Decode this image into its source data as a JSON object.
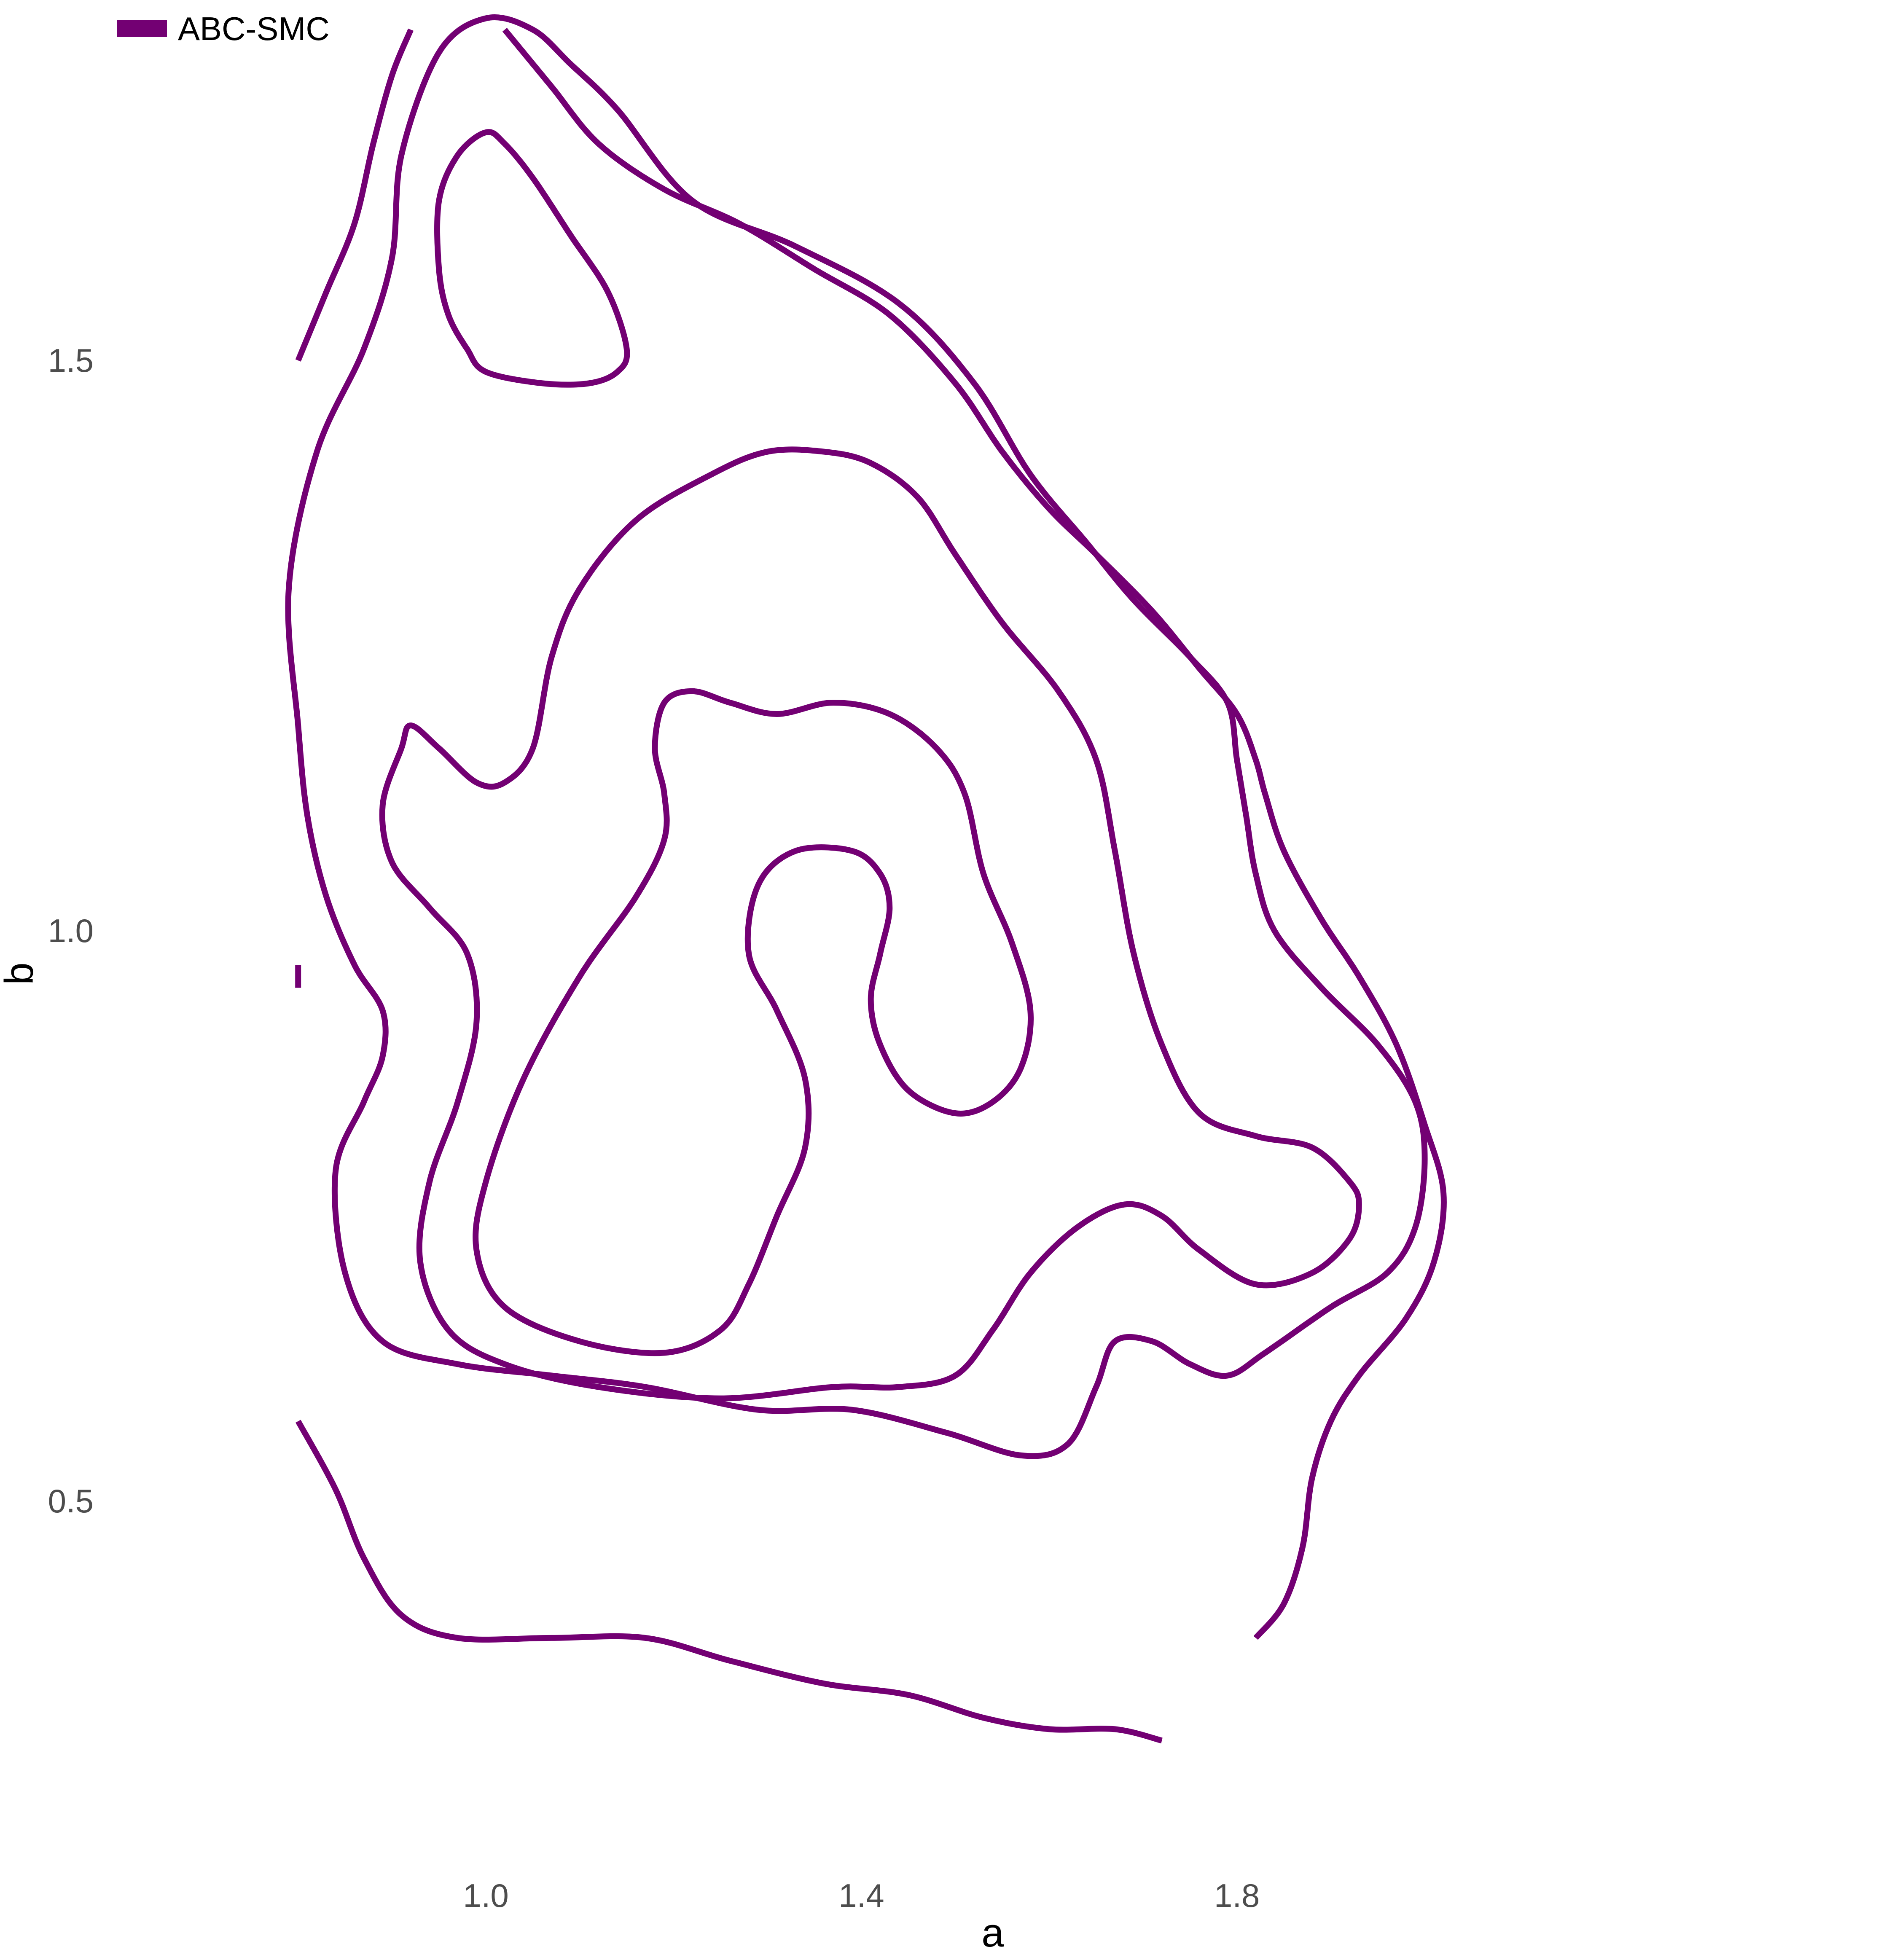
{
  "chart_data": {
    "type": "contour",
    "xlabel": "a",
    "ylabel": "b",
    "xlim": [
      0.68,
      2.12
    ],
    "ylim": [
      0.36,
      1.84
    ],
    "x_ticks": [
      1.0,
      1.4,
      1.8
    ],
    "x_tick_labels": [
      "1.0",
      "1.4",
      "1.8"
    ],
    "y_ticks": [
      0.5,
      1.0,
      1.5
    ],
    "y_tick_labels": [
      "0.5",
      "1.0",
      "1.5"
    ],
    "grid": false,
    "legend": {
      "placement": "top-left",
      "entries": [
        {
          "label": "ABC-SMC",
          "color": "#730073"
        }
      ]
    },
    "series": [
      {
        "name": "ABC-SMC",
        "color": "#730073",
        "contours": [
          {
            "level": 1,
            "closed": false,
            "points": [
              [
                0.8,
                1.5
              ],
              [
                0.83,
                1.56
              ],
              [
                0.86,
                1.62
              ],
              [
                0.88,
                1.69
              ],
              [
                0.9,
                1.75
              ],
              [
                0.92,
                1.79
              ]
            ]
          },
          {
            "level": 1,
            "closed": false,
            "points": [
              [
                0.8,
                0.97
              ],
              [
                0.8,
                0.95
              ]
            ]
          },
          {
            "level": 1,
            "closed": false,
            "points": [
              [
                0.8,
                0.57
              ],
              [
                0.84,
                0.51
              ],
              [
                0.87,
                0.45
              ],
              [
                0.91,
                0.4
              ],
              [
                0.97,
                0.38
              ],
              [
                1.07,
                0.38
              ],
              [
                1.17,
                0.38
              ],
              [
                1.26,
                0.36
              ],
              [
                1.36,
                0.34
              ],
              [
                1.45,
                0.33
              ],
              [
                1.53,
                0.31
              ],
              [
                1.6,
                0.3
              ],
              [
                1.67,
                0.3
              ],
              [
                1.72,
                0.29
              ]
            ]
          },
          {
            "level": 1,
            "closed": false,
            "points": [
              [
                1.02,
                1.79
              ],
              [
                1.07,
                1.74
              ],
              [
                1.12,
                1.69
              ],
              [
                1.19,
                1.65
              ],
              [
                1.27,
                1.62
              ],
              [
                1.35,
                1.58
              ],
              [
                1.43,
                1.54
              ],
              [
                1.5,
                1.48
              ],
              [
                1.55,
                1.42
              ],
              [
                1.6,
                1.37
              ],
              [
                1.65,
                1.33
              ],
              [
                1.71,
                1.28
              ],
              [
                1.76,
                1.23
              ],
              [
                1.8,
                1.19
              ],
              [
                1.82,
                1.15
              ],
              [
                1.83,
                1.12
              ],
              [
                1.85,
                1.07
              ],
              [
                1.89,
                1.01
              ],
              [
                1.93,
                0.96
              ],
              [
                1.97,
                0.9
              ],
              [
                2.0,
                0.83
              ],
              [
                2.02,
                0.77
              ],
              [
                2.01,
                0.71
              ],
              [
                1.98,
                0.66
              ],
              [
                1.93,
                0.61
              ],
              [
                1.9,
                0.57
              ],
              [
                1.88,
                0.52
              ],
              [
                1.87,
                0.46
              ],
              [
                1.85,
                0.41
              ],
              [
                1.82,
                0.38
              ]
            ]
          },
          {
            "level": 2,
            "closed": true,
            "points": [
              [
                1.0,
                1.8
              ],
              [
                1.05,
                1.79
              ],
              [
                1.09,
                1.76
              ],
              [
                1.14,
                1.72
              ],
              [
                1.22,
                1.64
              ],
              [
                1.33,
                1.6
              ],
              [
                1.44,
                1.55
              ],
              [
                1.52,
                1.48
              ],
              [
                1.58,
                1.4
              ],
              [
                1.64,
                1.34
              ],
              [
                1.69,
                1.29
              ],
              [
                1.75,
                1.24
              ],
              [
                1.79,
                1.2
              ],
              [
                1.8,
                1.15
              ],
              [
                1.81,
                1.1
              ],
              [
                1.82,
                1.05
              ],
              [
                1.84,
                1.0
              ],
              [
                1.89,
                0.95
              ],
              [
                1.95,
                0.9
              ],
              [
                1.99,
                0.85
              ],
              [
                2.0,
                0.8
              ],
              [
                1.99,
                0.74
              ],
              [
                1.96,
                0.7
              ],
              [
                1.9,
                0.67
              ],
              [
                1.83,
                0.63
              ],
              [
                1.79,
                0.61
              ],
              [
                1.75,
                0.62
              ],
              [
                1.71,
                0.64
              ],
              [
                1.67,
                0.64
              ],
              [
                1.65,
                0.6
              ],
              [
                1.62,
                0.55
              ],
              [
                1.57,
                0.54
              ],
              [
                1.49,
                0.56
              ],
              [
                1.39,
                0.58
              ],
              [
                1.29,
                0.58
              ],
              [
                1.17,
                0.6
              ],
              [
                1.07,
                0.61
              ],
              [
                0.97,
                0.62
              ],
              [
                0.89,
                0.64
              ],
              [
                0.85,
                0.7
              ],
              [
                0.84,
                0.79
              ],
              [
                0.87,
                0.85
              ],
              [
                0.89,
                0.89
              ],
              [
                0.89,
                0.93
              ],
              [
                0.86,
                0.97
              ],
              [
                0.83,
                1.03
              ],
              [
                0.81,
                1.1
              ],
              [
                0.8,
                1.18
              ],
              [
                0.79,
                1.3
              ],
              [
                0.82,
                1.42
              ],
              [
                0.87,
                1.51
              ],
              [
                0.9,
                1.59
              ],
              [
                0.91,
                1.68
              ],
              [
                0.95,
                1.77
              ],
              [
                1.0,
                1.8
              ]
            ]
          },
          {
            "level": 3,
            "closed": true,
            "points": [
              [
                1.0,
                1.7
              ],
              [
                1.02,
                1.69
              ],
              [
                1.05,
                1.66
              ],
              [
                1.09,
                1.61
              ],
              [
                1.13,
                1.56
              ],
              [
                1.15,
                1.51
              ],
              [
                1.14,
                1.49
              ],
              [
                1.11,
                1.48
              ],
              [
                1.06,
                1.48
              ],
              [
                1.0,
                1.49
              ],
              [
                0.98,
                1.51
              ],
              [
                0.96,
                1.54
              ],
              [
                0.95,
                1.58
              ],
              [
                0.95,
                1.64
              ],
              [
                0.97,
                1.68
              ],
              [
                1.0,
                1.7
              ]
            ]
          },
          {
            "level": 3,
            "closed": true,
            "points": [
              [
                1.36,
                1.42
              ],
              [
                1.41,
                1.41
              ],
              [
                1.46,
                1.38
              ],
              [
                1.5,
                1.33
              ],
              [
                1.55,
                1.27
              ],
              [
                1.61,
                1.21
              ],
              [
                1.65,
                1.15
              ],
              [
                1.67,
                1.07
              ],
              [
                1.69,
                0.98
              ],
              [
                1.72,
                0.9
              ],
              [
                1.76,
                0.84
              ],
              [
                1.82,
                0.82
              ],
              [
                1.88,
                0.81
              ],
              [
                1.92,
                0.78
              ],
              [
                1.93,
                0.76
              ],
              [
                1.92,
                0.73
              ],
              [
                1.88,
                0.7
              ],
              [
                1.82,
                0.69
              ],
              [
                1.76,
                0.72
              ],
              [
                1.72,
                0.75
              ],
              [
                1.68,
                0.76
              ],
              [
                1.63,
                0.74
              ],
              [
                1.58,
                0.7
              ],
              [
                1.54,
                0.65
              ],
              [
                1.5,
                0.61
              ],
              [
                1.44,
                0.6
              ],
              [
                1.37,
                0.6
              ],
              [
                1.25,
                0.59
              ],
              [
                1.12,
                0.6
              ],
              [
                1.02,
                0.62
              ],
              [
                0.96,
                0.65
              ],
              [
                0.93,
                0.71
              ],
              [
                0.94,
                0.78
              ],
              [
                0.97,
                0.85
              ],
              [
                0.99,
                0.92
              ],
              [
                0.98,
                0.98
              ],
              [
                0.94,
                1.02
              ],
              [
                0.9,
                1.06
              ],
              [
                0.89,
                1.11
              ],
              [
                0.91,
                1.16
              ],
              [
                0.92,
                1.18
              ],
              [
                0.95,
                1.16
              ],
              [
                0.99,
                1.13
              ],
              [
                1.02,
                1.13
              ],
              [
                1.05,
                1.16
              ],
              [
                1.07,
                1.24
              ],
              [
                1.1,
                1.3
              ],
              [
                1.16,
                1.36
              ],
              [
                1.24,
                1.4
              ],
              [
                1.3,
                1.42
              ],
              [
                1.36,
                1.42
              ]
            ]
          },
          {
            "level": 4,
            "closed": true,
            "points": [
              [
                1.22,
                1.21
              ],
              [
                1.26,
                1.2
              ],
              [
                1.31,
                1.19
              ],
              [
                1.37,
                1.2
              ],
              [
                1.43,
                1.19
              ],
              [
                1.48,
                1.16
              ],
              [
                1.51,
                1.12
              ],
              [
                1.53,
                1.05
              ],
              [
                1.56,
                0.99
              ],
              [
                1.58,
                0.93
              ],
              [
                1.57,
                0.88
              ],
              [
                1.54,
                0.85
              ],
              [
                1.5,
                0.84
              ],
              [
                1.45,
                0.86
              ],
              [
                1.42,
                0.9
              ],
              [
                1.41,
                0.94
              ],
              [
                1.42,
                0.98
              ],
              [
                1.43,
                1.02
              ],
              [
                1.42,
                1.05
              ],
              [
                1.39,
                1.07
              ],
              [
                1.33,
                1.07
              ],
              [
                1.29,
                1.04
              ],
              [
                1.28,
                0.98
              ],
              [
                1.31,
                0.93
              ],
              [
                1.34,
                0.87
              ],
              [
                1.34,
                0.81
              ],
              [
                1.31,
                0.75
              ],
              [
                1.28,
                0.69
              ],
              [
                1.25,
                0.65
              ],
              [
                1.19,
                0.63
              ],
              [
                1.1,
                0.64
              ],
              [
                1.02,
                0.67
              ],
              [
                0.99,
                0.72
              ],
              [
                1.0,
                0.78
              ],
              [
                1.04,
                0.87
              ],
              [
                1.1,
                0.96
              ],
              [
                1.16,
                1.03
              ],
              [
                1.19,
                1.08
              ],
              [
                1.19,
                1.12
              ],
              [
                1.18,
                1.16
              ],
              [
                1.19,
                1.2
              ],
              [
                1.22,
                1.21
              ]
            ]
          }
        ]
      }
    ]
  }
}
